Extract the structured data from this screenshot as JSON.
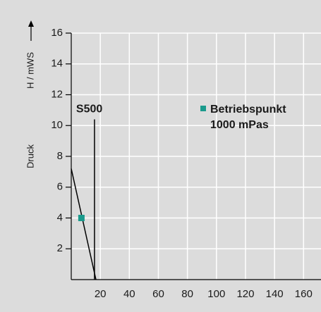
{
  "chart_data": {
    "type": "line",
    "y_label": "H / mWS",
    "y_label_2": "Druck",
    "xlim": [
      0,
      172
    ],
    "ylim": [
      0,
      16
    ],
    "xticks": [
      20,
      40,
      60,
      80,
      100,
      120,
      140,
      160
    ],
    "yticks": [
      2,
      4,
      6,
      8,
      10,
      12,
      14,
      16
    ],
    "grid": true,
    "series": [
      {
        "color": "#000000",
        "x": [
          0,
          17
        ],
        "values": [
          7.2,
          0
        ]
      },
      {
        "name": "S500",
        "color": "#000000",
        "x": [
          16,
          16
        ],
        "values": [
          0,
          10.4
        ]
      }
    ],
    "points": {
      "name": "Betriebspunkt",
      "note": "1000 mPas",
      "color": "#1a9a8c",
      "x": [
        7
      ],
      "values": [
        4
      ]
    }
  }
}
